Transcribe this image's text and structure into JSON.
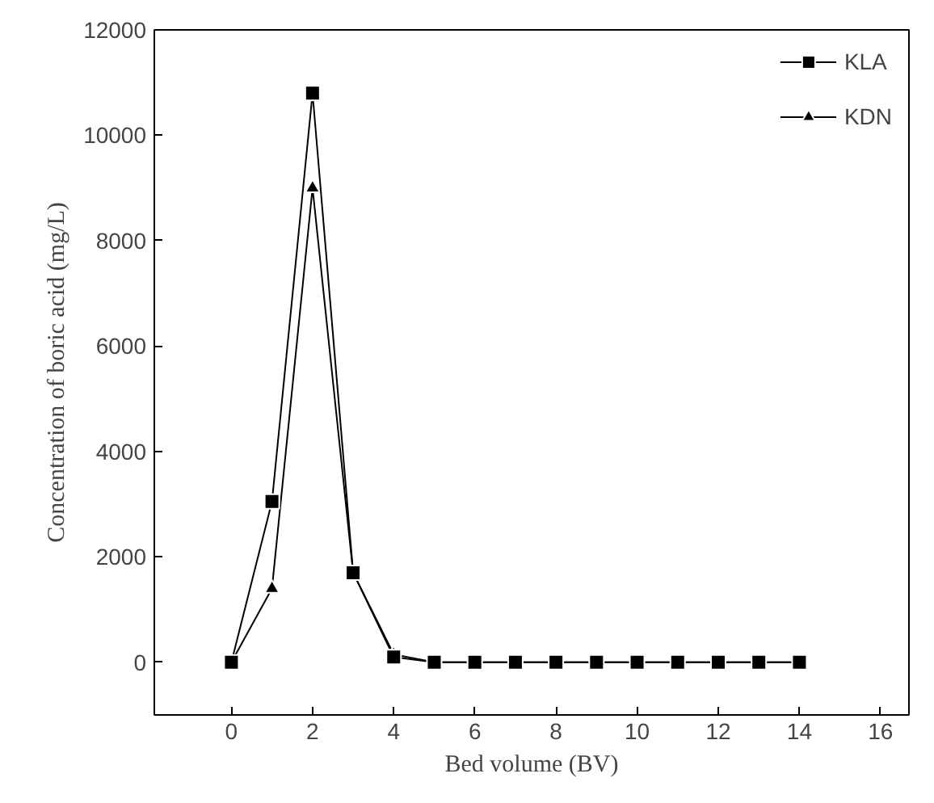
{
  "chart_data": {
    "type": "line",
    "xlabel": "Bed volume (BV)",
    "ylabel": "Concentration of boric acid (mg/L)",
    "x": [
      0,
      1,
      2,
      3,
      4,
      5,
      6,
      7,
      8,
      9,
      10,
      11,
      12,
      13,
      14
    ],
    "series": [
      {
        "name": "KLA",
        "color": "#000000",
        "marker": "square",
        "values": [
          0,
          3050,
          10800,
          1700,
          100,
          0,
          0,
          0,
          0,
          0,
          0,
          0,
          0,
          0,
          0
        ]
      },
      {
        "name": "KDN",
        "color": "#000000",
        "marker": "triangle",
        "values": [
          0,
          1400,
          9000,
          1700,
          150,
          0,
          0,
          0,
          0,
          0,
          0,
          0,
          0,
          0,
          0
        ]
      }
    ],
    "xlim": [
      -1.9,
      16.7
    ],
    "xticks": [
      0,
      2,
      4,
      6,
      8,
      10,
      12,
      14,
      16
    ],
    "ylim": [
      -1000,
      12000
    ],
    "yticks": [
      0,
      2000,
      4000,
      6000,
      8000,
      10000,
      12000
    ],
    "grid": false,
    "legend": "top right",
    "line_style": "solid"
  }
}
